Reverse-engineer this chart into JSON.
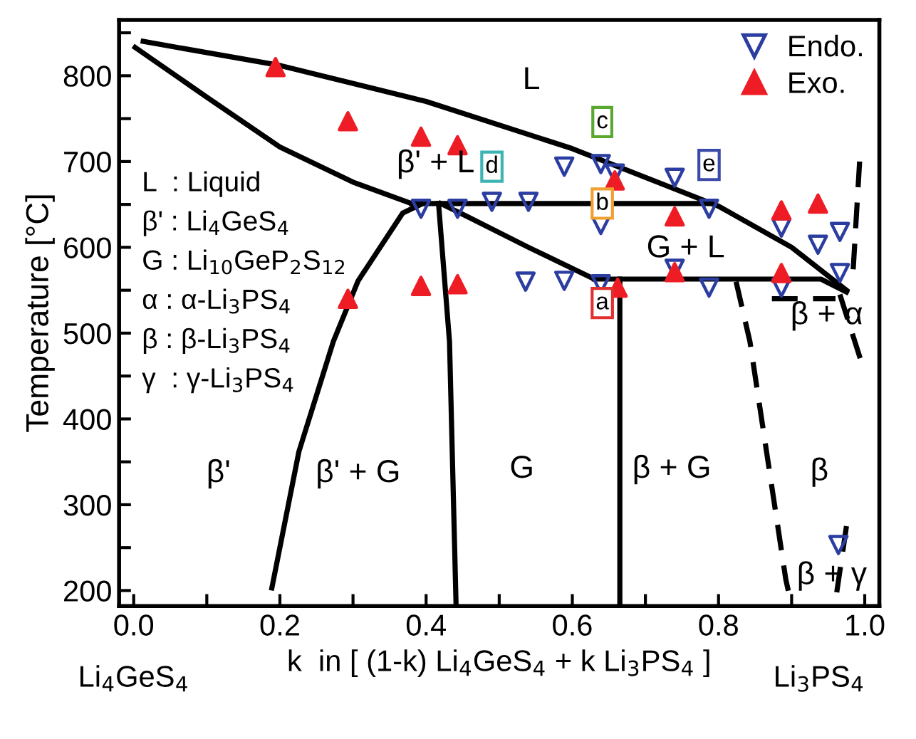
{
  "chart_data": {
    "type": "scatter",
    "xlabel": "k  in [ (1-k) Li$_{4}$GeS$_{4}$ + k Li$_{3}$PS$_{4}$ ]",
    "ylabel": "Temperature [°C]",
    "xlim": [
      -0.02,
      1.02
    ],
    "ylim": [
      182,
      865
    ],
    "xticks": [
      {
        "value": 0,
        "label": "0.0"
      },
      {
        "value": 0.1,
        "label": null
      },
      {
        "value": 0.2,
        "label": "0.2"
      },
      {
        "value": 0.3,
        "label": null
      },
      {
        "value": 0.4,
        "label": "0.4"
      },
      {
        "value": 0.5,
        "label": null
      },
      {
        "value": 0.6,
        "label": "0.6"
      },
      {
        "value": 0.7,
        "label": null
      },
      {
        "value": 0.8,
        "label": "0.8"
      },
      {
        "value": 0.9,
        "label": null
      },
      {
        "value": 1.0,
        "label": "1.0"
      }
    ],
    "yticks": [
      200,
      {
        "value": 250,
        "label": null
      },
      300,
      {
        "value": 350,
        "label": null
      },
      400,
      {
        "value": 450,
        "label": null
      },
      500,
      {
        "value": 550,
        "label": null
      },
      600,
      {
        "value": 650,
        "label": null
      },
      700,
      {
        "value": 750,
        "label": null
      },
      800,
      {
        "value": 850,
        "label": null
      }
    ],
    "grid": false,
    "legend": "top right",
    "series": [
      {
        "type": "line",
        "color": "#000000",
        "line_style": "solid",
        "x": [
          0.013,
          0.2,
          0.4,
          0.6,
          0.8,
          0.9,
          0.975
        ],
        "values": [
          840,
          812,
          770,
          715,
          648,
          600,
          550
        ]
      },
      {
        "type": "line",
        "color": "#000000",
        "line_style": "solid",
        "x": [
          0.002,
          0.1,
          0.2,
          0.3,
          0.38
        ],
        "values": [
          833,
          775,
          717,
          676,
          651
        ]
      },
      {
        "type": "line",
        "color": "#000000",
        "line_style": "solid",
        "x": [
          0.38,
          0.787
        ],
        "values": [
          651,
          651
        ]
      },
      {
        "type": "line",
        "color": "#000000",
        "line_style": "solid",
        "x": [
          0.42,
          0.456,
          0.54,
          0.63
        ],
        "values": [
          651,
          636,
          600,
          563
        ]
      },
      {
        "type": "line",
        "color": "#000000",
        "line_style": "solid",
        "x": [
          0.63,
          0.94,
          0.975
        ],
        "values": [
          563,
          563,
          548
        ]
      },
      {
        "type": "line",
        "color": "#000000",
        "line_style": "solid",
        "x": [
          0.665,
          0.665
        ],
        "values": [
          563,
          182
        ]
      },
      {
        "type": "line",
        "color": "#000000",
        "line_style": "solid",
        "x": [
          0.189,
          0.226,
          0.273,
          0.307,
          0.368,
          0.395
        ],
        "values": [
          203,
          362,
          490,
          561,
          640,
          651
        ]
      },
      {
        "type": "line",
        "color": "#000000",
        "line_style": "solid",
        "x": [
          0.417,
          0.432,
          0.441
        ],
        "values": [
          651,
          490,
          182
        ]
      },
      {
        "type": "line",
        "color": "#000000",
        "line_style": "dashed",
        "x": [
          0.824,
          0.843,
          0.892,
          0.9
        ],
        "values": [
          560,
          490,
          213,
          182
        ]
      },
      {
        "type": "line",
        "color": "#000000",
        "line_style": "dashed",
        "x": [
          0.873,
          0.96
        ],
        "values": [
          540,
          540
        ]
      },
      {
        "type": "line",
        "color": "#000000",
        "line_style": "dashed",
        "x": [
          0.966,
          0.994
        ],
        "values": [
          545,
          470
        ]
      },
      {
        "type": "line",
        "color": "#000000",
        "line_style": "dashed",
        "x": [
          0.993,
          0.983
        ],
        "values": [
          700,
          557
        ]
      },
      {
        "type": "line",
        "color": "#000000",
        "line_style": "dashed",
        "x": [
          0.975,
          0.96
        ],
        "values": [
          275,
          188
        ]
      },
      {
        "name": "Endo.",
        "color": "#2b3da0",
        "marker": "triangle_down",
        "x": [
          0.393,
          0.443,
          0.49,
          0.54,
          0.589,
          0.639,
          0.658,
          0.639,
          0.74,
          0.787,
          0.886,
          0.936,
          0.966,
          0.536,
          0.589,
          0.639,
          0.74,
          0.787,
          0.886,
          0.966,
          0.964
        ],
        "values": [
          645,
          645,
          653,
          653,
          694,
          697,
          686,
          626,
          681,
          645,
          623,
          603,
          618,
          560,
          561,
          557,
          575,
          553,
          553,
          570,
          253
        ]
      },
      {
        "name": "Exo.",
        "color": "#ee1c24",
        "marker": "triangle",
        "x": [
          0.194,
          0.293,
          0.393,
          0.443,
          0.393,
          0.443,
          0.293,
          0.658,
          0.74,
          0.886,
          0.936,
          0.74,
          0.886,
          0.662
        ],
        "values": [
          810,
          747,
          729,
          719,
          555,
          557,
          540,
          678,
          636,
          643,
          651,
          571,
          570,
          553
        ]
      }
    ],
    "annotations": [
      "L  : Liquid",
      "β' : Li$_{4}$GeS$_{4}$",
      "G : Li$_{10}$GeP$_{2}$S$_{12}$",
      "α : α-Li$_{3}$PS$_{4}$",
      "β : β-Li$_{3}$PS$_{4}$",
      "γ  : γ-Li$_{3}$PS$_{4}$",
      "Li$_{4}$GeS$_{4}$",
      "Li$_{3}$PS$_{4}$",
      "L",
      "β' + L",
      "G + L",
      "β + α",
      "β'",
      "β' + G",
      "G",
      "β + G",
      "β",
      "β + γ",
      "c",
      "d",
      "e",
      "b",
      "a"
    ]
  }
}
